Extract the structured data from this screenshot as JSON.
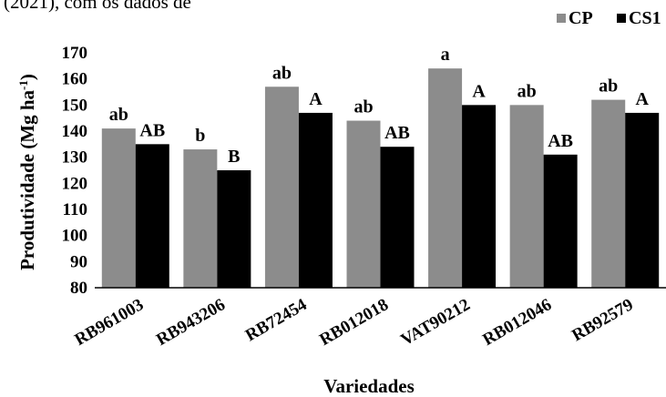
{
  "top_fragment": "(2021), com os dados de",
  "chart_data": {
    "type": "bar",
    "categories": [
      "RB961003",
      "RB943206",
      "RB72454",
      "RB012018",
      "VAT90212",
      "RB012046",
      "RB92579"
    ],
    "series": [
      {
        "name": "CP",
        "color": "#8c8c8c",
        "values": [
          141,
          133,
          157,
          144,
          164,
          150,
          152
        ],
        "labels": [
          "ab",
          "b",
          "ab",
          "ab",
          "a",
          "ab",
          "ab"
        ]
      },
      {
        "name": "CS1",
        "color": "#000000",
        "values": [
          135,
          125,
          147,
          134,
          150,
          131,
          147
        ],
        "labels": [
          "AB",
          "B",
          "A",
          "AB",
          "A",
          "AB",
          "A"
        ]
      }
    ],
    "xlabel": "Variedades",
    "ylabel": "Produtividade (Mg ha",
    "ylabel_sup": "-1",
    "ylabel_close": ")",
    "ylim": [
      80,
      170
    ],
    "ytick_step": 10,
    "grid": false,
    "legend_position": "top-right"
  }
}
